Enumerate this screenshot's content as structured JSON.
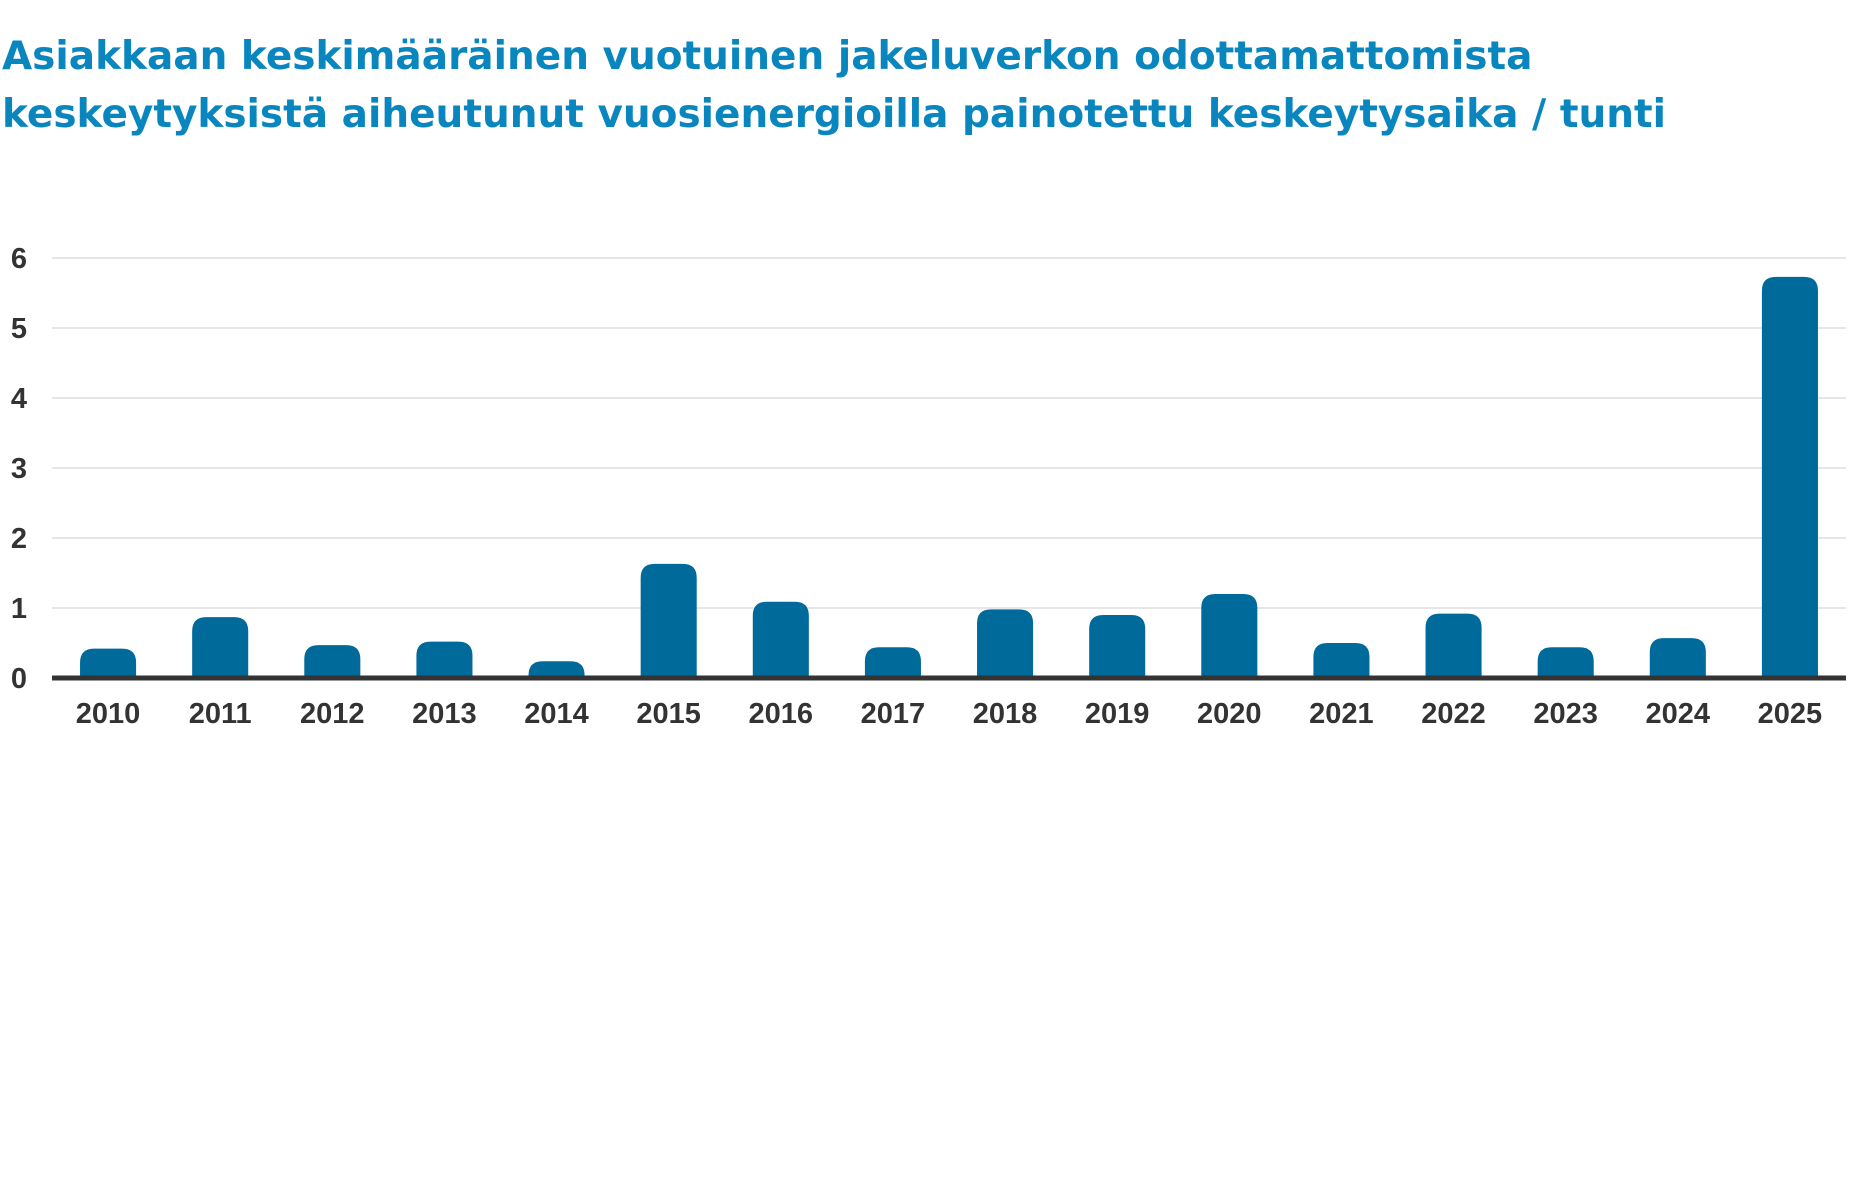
{
  "chart_data": {
    "type": "bar",
    "title_lines": [
      "Asiakkaan keskimääräinen vuotuinen jakeluverkon odottamattomista",
      "keskeytyksistä aiheutunut vuosienergioilla painotettu keskeytysaika / tunti"
    ],
    "categories": [
      "2010",
      "2011",
      "2012",
      "2013",
      "2014",
      "2015",
      "2016",
      "2017",
      "2018",
      "2019",
      "2020",
      "2021",
      "2022",
      "2023",
      "2024",
      "2025"
    ],
    "values": [
      0.42,
      0.87,
      0.47,
      0.52,
      0.24,
      1.63,
      1.09,
      0.44,
      0.98,
      0.9,
      1.2,
      0.5,
      0.92,
      0.44,
      0.57,
      5.73
    ],
    "ylim": [
      0,
      6
    ],
    "yticks": [
      "0",
      "1",
      "2",
      "3",
      "4",
      "5",
      "6"
    ],
    "grid": true,
    "colors": {
      "bar": "#006a9b",
      "title": "#0a86bf",
      "axis": "#333333",
      "grid": "#dddddd"
    }
  }
}
